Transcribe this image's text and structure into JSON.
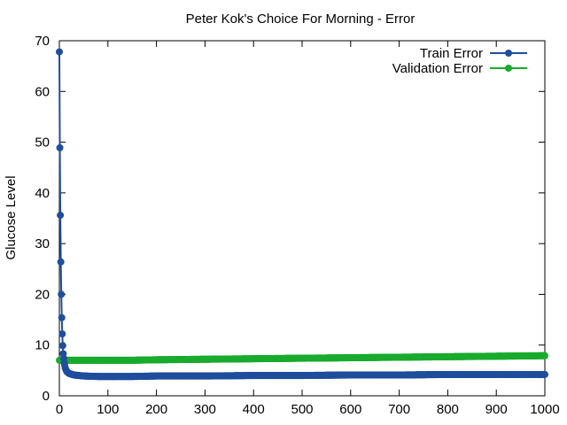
{
  "chart_data": {
    "type": "line",
    "title": "Peter Kok's Choice For Morning - Error",
    "xlabel": "",
    "ylabel": "Glucose Level",
    "xlim": [
      0,
      1000
    ],
    "ylim": [
      0,
      70
    ],
    "xticks": [
      0,
      100,
      200,
      300,
      400,
      500,
      600,
      700,
      800,
      900,
      1000
    ],
    "yticks": [
      0,
      10,
      20,
      30,
      40,
      50,
      60,
      70
    ],
    "grid": false,
    "legend": "top-right",
    "series": [
      {
        "name": "Train Error",
        "color": "#1f4e9c",
        "x": [
          0,
          1,
          2,
          3,
          4,
          5,
          6,
          7,
          8,
          10,
          12,
          15,
          20,
          30,
          50,
          80,
          100,
          150,
          200,
          300,
          400,
          500,
          600,
          700,
          800,
          900,
          1000
        ],
        "y": [
          67.8,
          48.9,
          35.6,
          26.4,
          20.0,
          15.4,
          12.2,
          9.9,
          8.3,
          6.5,
          5.5,
          4.8,
          4.4,
          4.1,
          3.9,
          3.8,
          3.8,
          3.8,
          3.9,
          3.9,
          4.0,
          4.0,
          4.1,
          4.1,
          4.2,
          4.2,
          4.2
        ]
      },
      {
        "name": "Validation Error",
        "color": "#1aab2e",
        "x": [
          0,
          10,
          50,
          100,
          150,
          200,
          300,
          400,
          500,
          600,
          700,
          800,
          900,
          1000
        ],
        "y": [
          7.0,
          7.0,
          7.0,
          7.0,
          7.0,
          7.1,
          7.2,
          7.3,
          7.4,
          7.5,
          7.6,
          7.7,
          7.8,
          7.9
        ]
      }
    ]
  }
}
